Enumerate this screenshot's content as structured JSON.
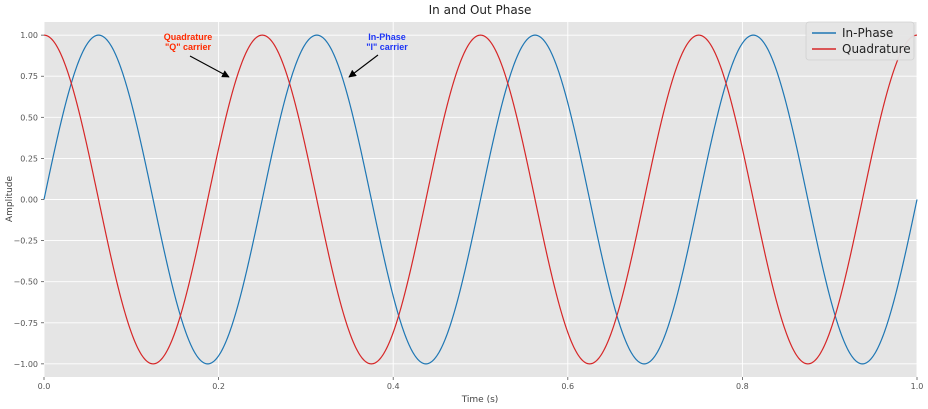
{
  "chart_data": {
    "type": "line",
    "title": "In and Out Phase",
    "xlabel": "Time (s)",
    "ylabel": "Amplitude",
    "xlim": [
      0,
      1
    ],
    "ylim": [
      -1.08,
      1.08
    ],
    "grid": true,
    "legend_position": "top-right",
    "xticks": [
      0.0,
      0.2,
      0.4,
      0.6,
      0.8,
      1.0
    ],
    "xtick_labels": [
      "0.0",
      "0.2",
      "0.4",
      "0.6",
      "0.8",
      "1.0"
    ],
    "yticks": [
      -1.0,
      -0.75,
      -0.5,
      -0.25,
      0.0,
      0.25,
      0.5,
      0.75,
      1.0
    ],
    "ytick_labels": [
      "−1.00",
      "−0.75",
      "−0.50",
      "−0.25",
      "0.00",
      "0.25",
      "0.50",
      "0.75",
      "1.00"
    ],
    "series": [
      {
        "name": "In-Phase",
        "function": "sin",
        "frequency_hz": 4,
        "amplitude": 1,
        "color": "#1f77b4"
      },
      {
        "name": "Quadrature",
        "function": "cos",
        "frequency_hz": 4,
        "amplitude": 1,
        "color": "#d62728"
      }
    ],
    "annotations": [
      {
        "lines": [
          "Quadrature",
          "\"Q\" carrier"
        ],
        "color": "#ff2a00",
        "x": 0.21,
        "y": 0.73
      },
      {
        "lines": [
          "In-Phase",
          "\"I\" carrier"
        ],
        "color": "#1d35f5",
        "x": 0.35,
        "y": 0.72
      }
    ]
  },
  "colors": {
    "plot_background": "#e5e5e5",
    "grid": "#ffffff"
  }
}
